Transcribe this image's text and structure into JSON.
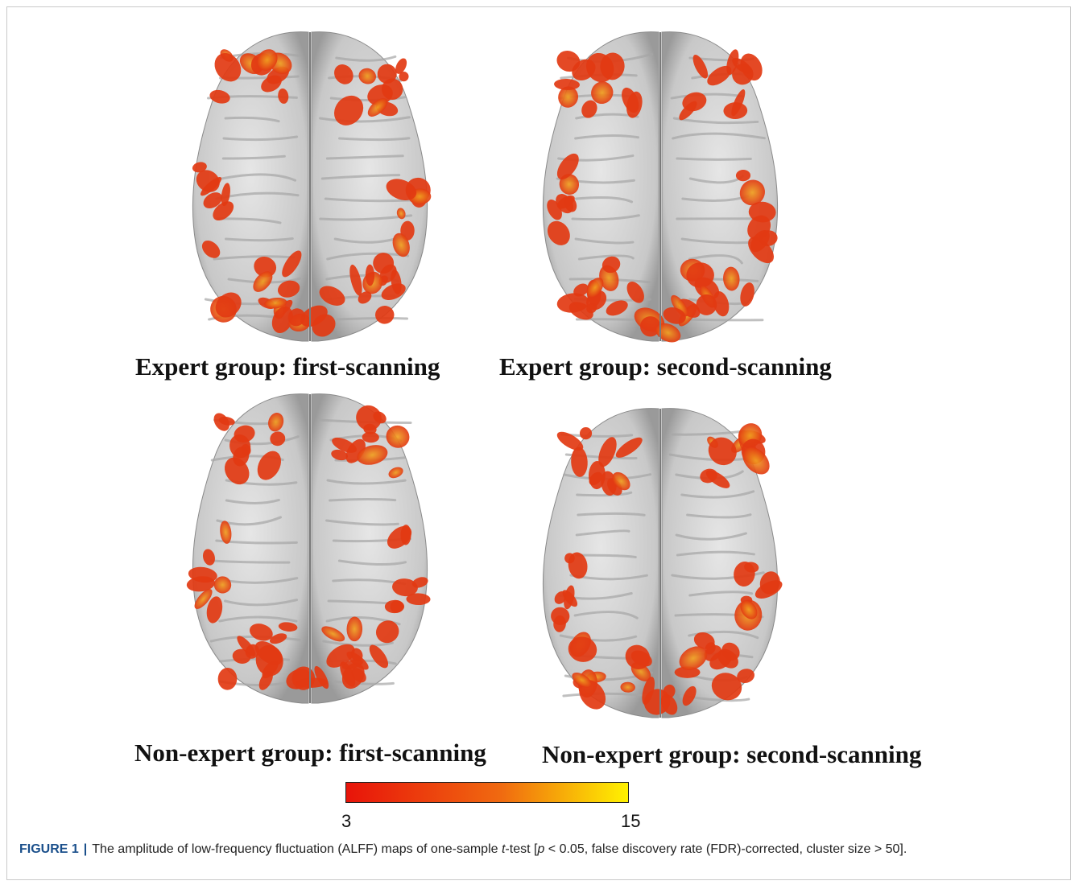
{
  "figure": {
    "panels": [
      {
        "id": "expert-first",
        "label": "Expert group: first-scanning"
      },
      {
        "id": "expert-second",
        "label": "Expert group: second-scanning"
      },
      {
        "id": "nonexpert-first",
        "label": "Non-expert group: first-scanning"
      },
      {
        "id": "nonexpert-second",
        "label": "Non-expert group: second-scanning"
      }
    ],
    "colorbar": {
      "min_label": "3",
      "max_label": "15",
      "color_low": "#e8140a",
      "color_mid": "#f06a10",
      "color_high": "#fff200"
    },
    "brain_colors": {
      "cortex": "#c8c8c8",
      "cortex_shade": "#9a9a9a",
      "activation": "#e23a12",
      "activation_hot": "#f0a020"
    }
  },
  "caption": {
    "label": "FIGURE 1",
    "separator": "|",
    "text_1": "The amplitude of low-frequency fluctuation (ALFF) maps of one-sample ",
    "italic_t": "t",
    "text_2": "-test [",
    "italic_p": "p",
    "text_3": " < 0.05, false discovery rate (FDR)-corrected, cluster size > 50]."
  }
}
